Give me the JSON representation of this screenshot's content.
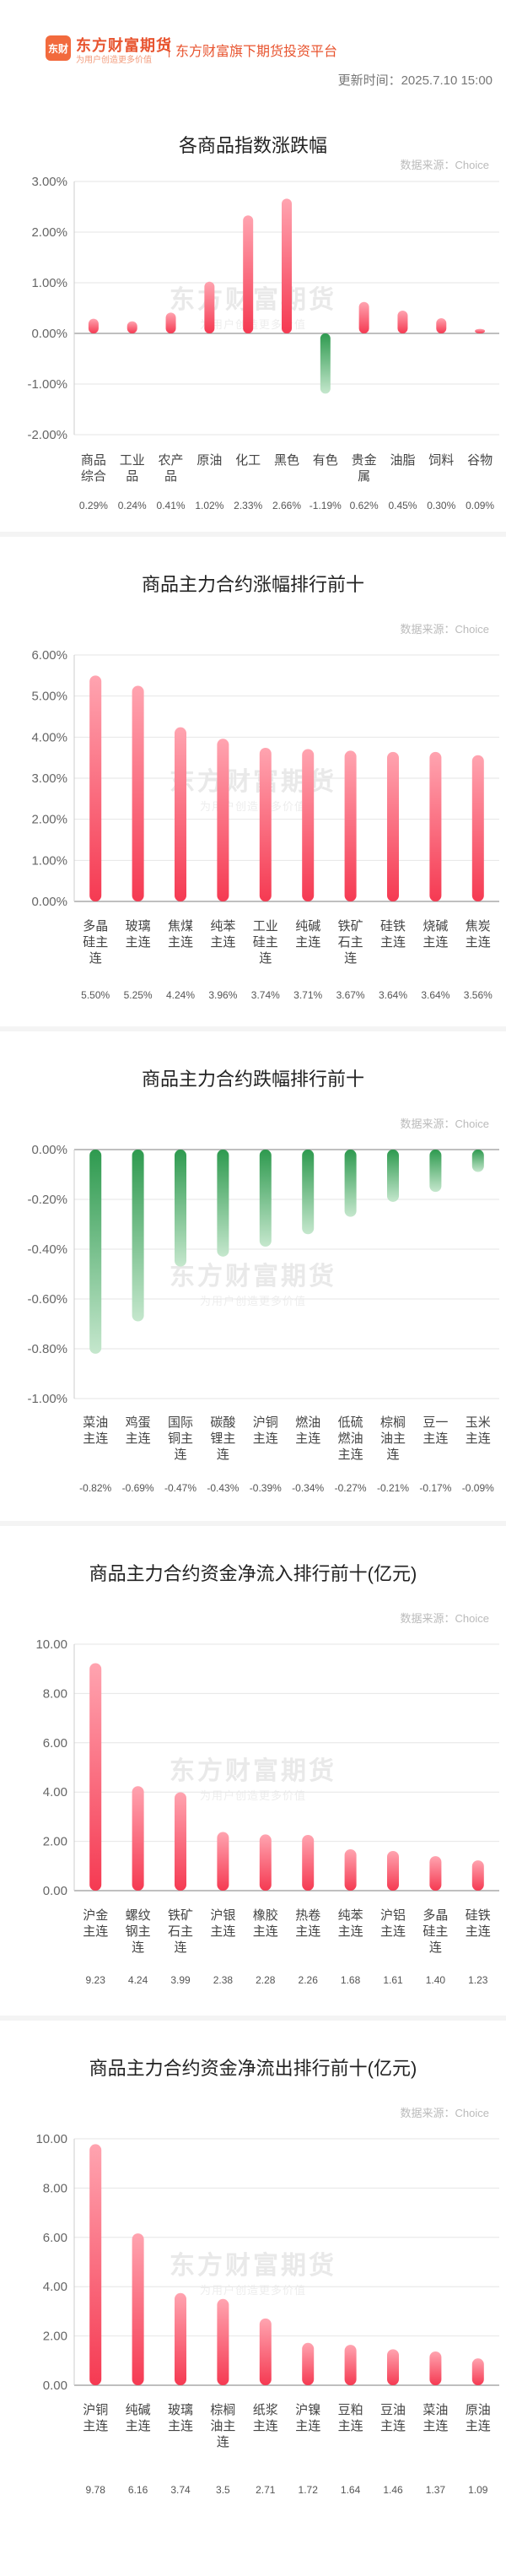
{
  "header": {
    "logo_badge": "东财",
    "logo_name": "东方财富期货",
    "logo_slogan": "为用户创造更多价值",
    "platform": "东方财富旗下期货投资平台",
    "update_time": "更新时间：2025.7.10 15:00"
  },
  "watermark": {
    "name": "东方财富期货",
    "slogan": "为用户创造更多价值"
  },
  "colors": {
    "rise_top": "#ffa4b0",
    "rise_bottom": "#f53a52",
    "fall_top": "#2e9a4f",
    "fall_bottom": "#c5e7cd",
    "axis": "#cccccc",
    "grid": "#e6e6e6"
  },
  "chart_data": [
    {
      "type": "bar",
      "title": "各商品指数涨跌幅",
      "source": "数据来源：Choice",
      "ylim": [
        -2,
        3
      ],
      "yticks": [
        "3.00%",
        "2.00%",
        "1.00%",
        "0.00%",
        "-1.00%",
        "-2.00%"
      ],
      "categories": [
        "商品\n综合",
        "工业\n品",
        "农产\n品",
        "原油",
        "化工",
        "黑色",
        "有色",
        "贵金\n属",
        "油脂",
        "饲料",
        "谷物"
      ],
      "values": [
        0.29,
        0.24,
        0.41,
        1.02,
        2.33,
        2.66,
        -1.19,
        0.62,
        0.45,
        0.3,
        0.09
      ],
      "value_labels": [
        "0.29%",
        "0.24%",
        "0.41%",
        "1.02%",
        "2.33%",
        "2.66%",
        "-1.19%",
        "0.62%",
        "0.45%",
        "0.30%",
        "0.09%"
      ],
      "grid": true
    },
    {
      "type": "bar",
      "title": "商品主力合约涨幅排行前十",
      "source": "数据来源：Choice",
      "ylim": [
        0,
        6
      ],
      "yticks": [
        "6.00%",
        "5.00%",
        "4.00%",
        "3.00%",
        "2.00%",
        "1.00%",
        "0.00%"
      ],
      "categories": [
        "多晶\n硅主\n连",
        "玻璃\n主连",
        "焦煤\n主连",
        "纯苯\n主连",
        "工业\n硅主\n连",
        "纯碱\n主连",
        "铁矿\n石主\n连",
        "硅铁\n主连",
        "烧碱\n主连",
        "焦炭\n主连"
      ],
      "values": [
        5.5,
        5.25,
        4.24,
        3.96,
        3.74,
        3.71,
        3.67,
        3.64,
        3.64,
        3.56
      ],
      "value_labels": [
        "5.50%",
        "5.25%",
        "4.24%",
        "3.96%",
        "3.74%",
        "3.71%",
        "3.67%",
        "3.64%",
        "3.64%",
        "3.56%"
      ],
      "grid": true
    },
    {
      "type": "bar",
      "title": "商品主力合约跌幅排行前十",
      "source": "数据来源：Choice",
      "ylim": [
        -1,
        0
      ],
      "yticks": [
        "0.00%",
        "-0.20%",
        "-0.40%",
        "-0.60%",
        "-0.80%",
        "-1.00%"
      ],
      "categories": [
        "菜油\n主连",
        "鸡蛋\n主连",
        "国际\n铜主\n连",
        "碳酸\n锂主\n连",
        "沪铜\n主连",
        "燃油\n主连",
        "低硫\n燃油\n主连",
        "棕榈\n油主\n连",
        "豆一\n主连",
        "玉米\n主连"
      ],
      "values": [
        -0.82,
        -0.69,
        -0.47,
        -0.43,
        -0.39,
        -0.34,
        -0.27,
        -0.21,
        -0.17,
        -0.09
      ],
      "value_labels": [
        "-0.82%",
        "-0.69%",
        "-0.47%",
        "-0.43%",
        "-0.39%",
        "-0.34%",
        "-0.27%",
        "-0.21%",
        "-0.17%",
        "-0.09%"
      ],
      "grid": true
    },
    {
      "type": "bar",
      "title": "商品主力合约资金净流入排行前十(亿元)",
      "source": "数据来源：Choice",
      "ylim": [
        0,
        10
      ],
      "yticks": [
        "10.00",
        "8.00",
        "6.00",
        "4.00",
        "2.00",
        "0.00"
      ],
      "categories": [
        "沪金\n主连",
        "螺纹\n钢主\n连",
        "铁矿\n石主\n连",
        "沪银\n主连",
        "橡胶\n主连",
        "热卷\n主连",
        "纯苯\n主连",
        "沪铝\n主连",
        "多晶\n硅主\n连",
        "硅铁\n主连"
      ],
      "values": [
        9.23,
        4.24,
        3.99,
        2.38,
        2.28,
        2.26,
        1.68,
        1.61,
        1.4,
        1.23
      ],
      "value_labels": [
        "9.23",
        "4.24",
        "3.99",
        "2.38",
        "2.28",
        "2.26",
        "1.68",
        "1.61",
        "1.40",
        "1.23"
      ],
      "grid": true
    },
    {
      "type": "bar",
      "title": "商品主力合约资金净流出排行前十(亿元)",
      "source": "数据来源：Choice",
      "ylim": [
        0,
        10
      ],
      "yticks": [
        "10.00",
        "8.00",
        "6.00",
        "4.00",
        "2.00",
        "0.00"
      ],
      "categories": [
        "沪铜\n主连",
        "纯碱\n主连",
        "玻璃\n主连",
        "棕榈\n油主\n连",
        "纸浆\n主连",
        "沪镍\n主连",
        "豆粕\n主连",
        "豆油\n主连",
        "菜油\n主连",
        "原油\n主连"
      ],
      "values": [
        9.78,
        6.16,
        3.74,
        3.5,
        2.71,
        1.72,
        1.64,
        1.46,
        1.37,
        1.09
      ],
      "value_labels": [
        "9.78",
        "6.16",
        "3.74",
        "3.5",
        "2.71",
        "1.72",
        "1.64",
        "1.46",
        "1.37",
        "1.09"
      ],
      "grid": true
    }
  ]
}
